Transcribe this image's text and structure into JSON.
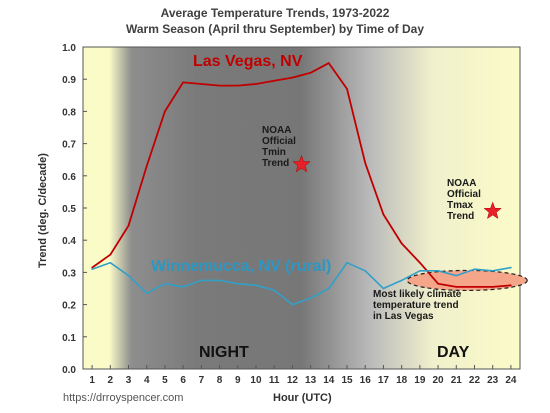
{
  "chart_data": {
    "type": "line",
    "title": "Average Temperature Trends, 1973-2022",
    "subtitle": "Warm Season (April thru September) by Time of Day",
    "xlabel": "Hour (UTC)",
    "ylabel": "Trend (deg. C/decade)",
    "ylim": [
      0.0,
      1.0
    ],
    "yticks": [
      "0.0",
      "0.1",
      "0.2",
      "0.3",
      "0.4",
      "0.5",
      "0.6",
      "0.7",
      "0.8",
      "0.9",
      "1.0"
    ],
    "x": [
      1,
      2,
      3,
      4,
      5,
      6,
      7,
      8,
      9,
      10,
      11,
      12,
      13,
      14,
      15,
      16,
      17,
      18,
      19,
      20,
      21,
      22,
      23,
      24
    ],
    "series": [
      {
        "name": "Las Vegas, NV",
        "color": "#c00000",
        "values": [
          0.315,
          0.355,
          0.445,
          0.63,
          0.8,
          0.89,
          0.885,
          0.88,
          0.88,
          0.885,
          0.895,
          0.905,
          0.92,
          0.95,
          0.87,
          0.64,
          0.48,
          0.39,
          0.33,
          0.265,
          0.255,
          0.255,
          0.255,
          0.26
        ]
      },
      {
        "name": "Winnemucca, NV (rural)",
        "color": "#31a0c8",
        "values": [
          0.31,
          0.33,
          0.29,
          0.235,
          0.265,
          0.255,
          0.275,
          0.275,
          0.265,
          0.26,
          0.245,
          0.2,
          0.22,
          0.25,
          0.33,
          0.305,
          0.25,
          0.275,
          0.305,
          0.305,
          0.29,
          0.31,
          0.305,
          0.315
        ]
      }
    ],
    "markers": [
      {
        "label_lines": [
          "NOAA",
          "Official",
          "Tmin",
          "Trend"
        ],
        "x": 12.5,
        "y": 0.635
      },
      {
        "label_lines": [
          "NOAA",
          "Official",
          "Tmax",
          "Trend"
        ],
        "x": 23.0,
        "y": 0.49
      }
    ],
    "annotation_lines": [
      "Most likely climate",
      "temperature trend",
      "in Las Vegas"
    ],
    "period_labels": {
      "night": "NIGHT",
      "day": "DAY"
    },
    "grid": false
  },
  "credit": "https://drroyspencer.com",
  "colors": {
    "plot_bg": "#fbfbc8",
    "night_shade": "#8a8a8a",
    "star": "#e8202a",
    "ellipse": "#f4a58a"
  }
}
